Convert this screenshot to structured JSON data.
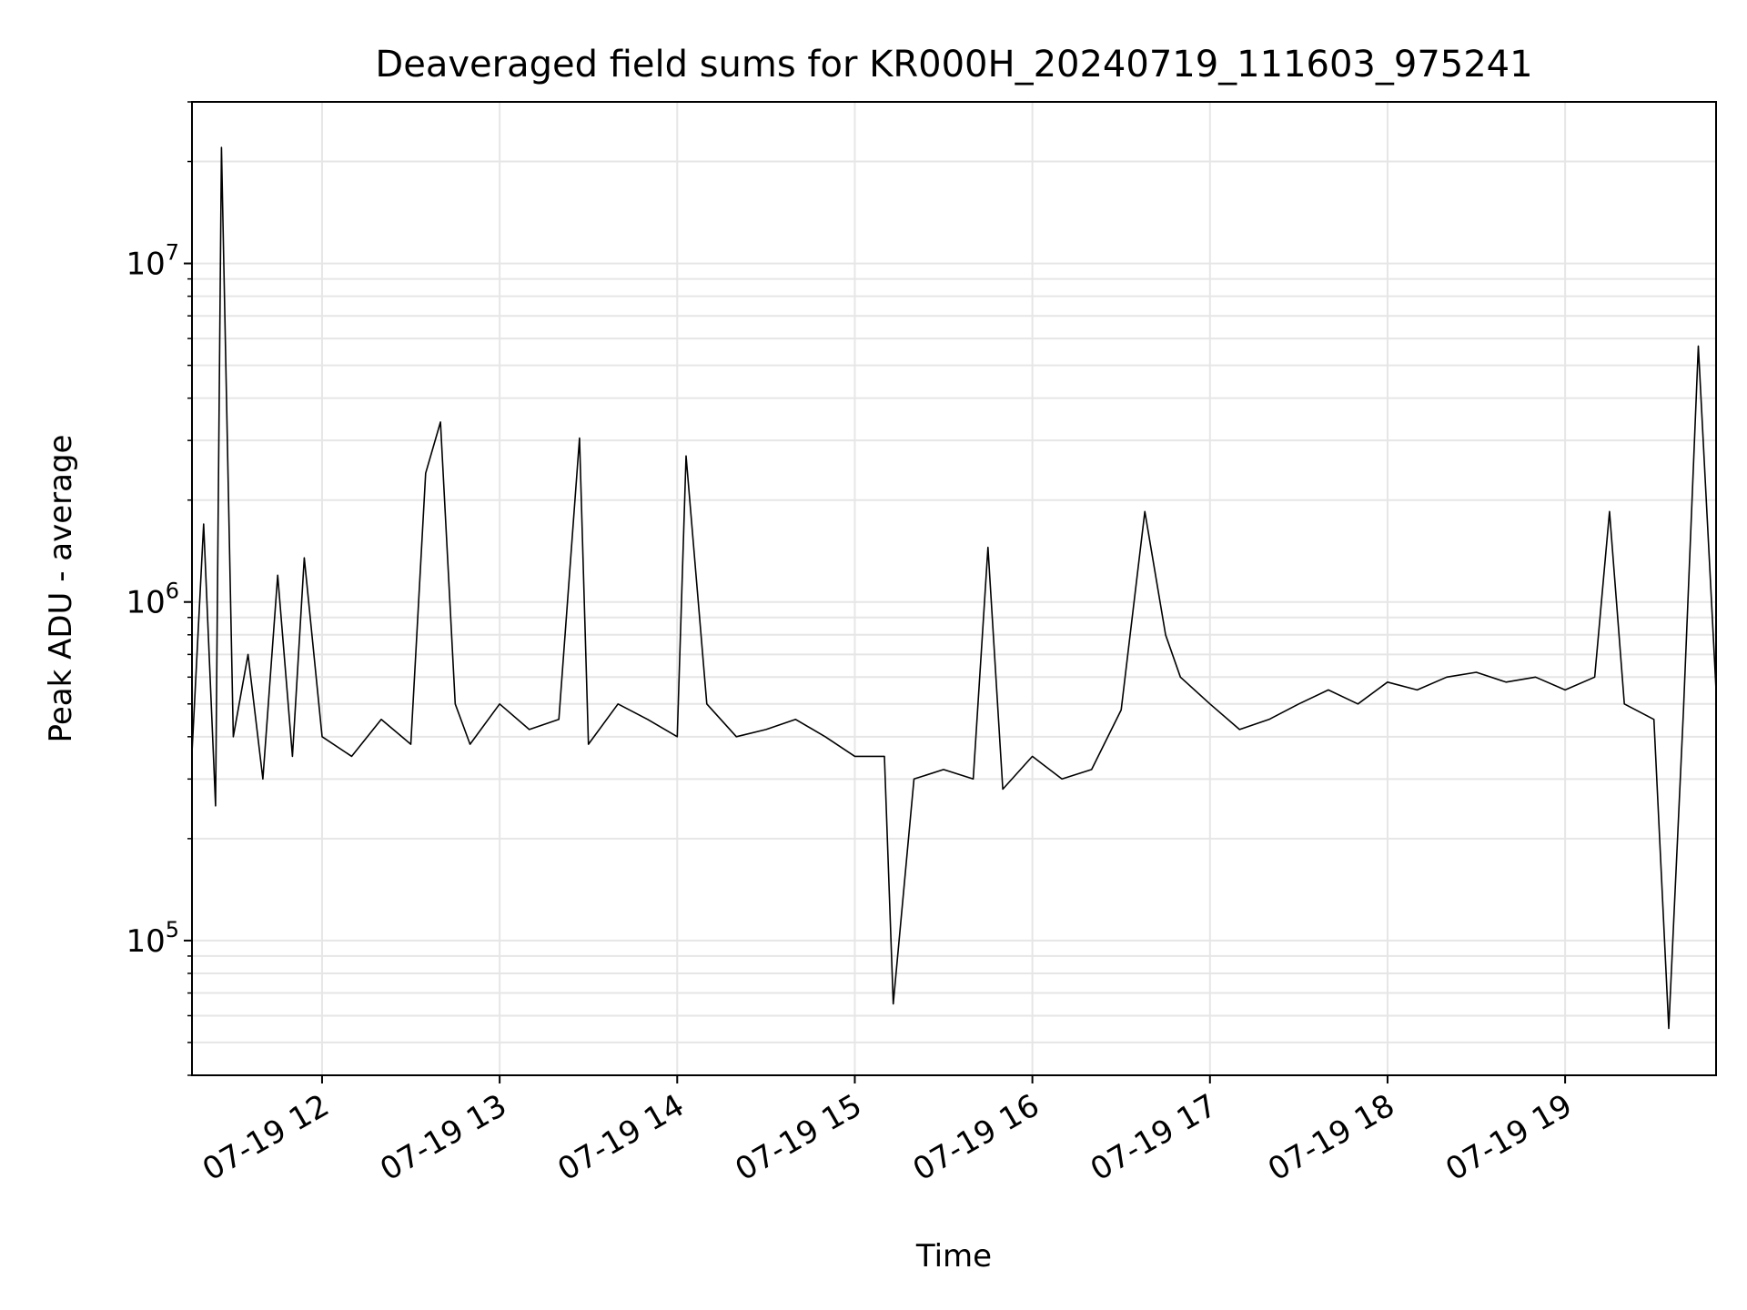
{
  "chart_data": {
    "type": "line",
    "title": "Deaveraged field sums for KR000H_20240719_111603_975241",
    "xlabel": "Time",
    "ylabel": "Peak ADU - average",
    "x_scale": "time",
    "y_scale": "log",
    "xlim": [
      "2024-07-19T11:16:03",
      "2024-07-19T19:51:00"
    ],
    "ylim": [
      40000,
      30000000
    ],
    "grid": true,
    "line_color": "#000000",
    "grid_color": "#e6e6e6",
    "x_ticks": [
      {
        "value": "2024-07-19T12:00",
        "label": "07-19 12"
      },
      {
        "value": "2024-07-19T13:00",
        "label": "07-19 13"
      },
      {
        "value": "2024-07-19T14:00",
        "label": "07-19 14"
      },
      {
        "value": "2024-07-19T15:00",
        "label": "07-19 15"
      },
      {
        "value": "2024-07-19T16:00",
        "label": "07-19 16"
      },
      {
        "value": "2024-07-19T17:00",
        "label": "07-19 17"
      },
      {
        "value": "2024-07-19T18:00",
        "label": "07-19 18"
      },
      {
        "value": "2024-07-19T19:00",
        "label": "07-19 19"
      }
    ],
    "y_ticks": [
      {
        "value": 100000,
        "base": "10",
        "exp": "5"
      },
      {
        "value": 1000000,
        "base": "10",
        "exp": "6"
      },
      {
        "value": 10000000,
        "base": "10",
        "exp": "7"
      }
    ],
    "series": [
      {
        "x": [
          "2024-07-19T11:16",
          "2024-07-19T11:20",
          "2024-07-19T11:24",
          "2024-07-19T11:26",
          "2024-07-19T11:30",
          "2024-07-19T11:35",
          "2024-07-19T11:40",
          "2024-07-19T11:45",
          "2024-07-19T11:50",
          "2024-07-19T11:54",
          "2024-07-19T12:00",
          "2024-07-19T12:10",
          "2024-07-19T12:20",
          "2024-07-19T12:30",
          "2024-07-19T12:35",
          "2024-07-19T12:40",
          "2024-07-19T12:45",
          "2024-07-19T12:50",
          "2024-07-19T13:00",
          "2024-07-19T13:10",
          "2024-07-19T13:20",
          "2024-07-19T13:27",
          "2024-07-19T13:30",
          "2024-07-19T13:40",
          "2024-07-19T13:50",
          "2024-07-19T14:00",
          "2024-07-19T14:03",
          "2024-07-19T14:10",
          "2024-07-19T14:20",
          "2024-07-19T14:30",
          "2024-07-19T14:40",
          "2024-07-19T14:50",
          "2024-07-19T15:00",
          "2024-07-19T15:10",
          "2024-07-19T15:13",
          "2024-07-19T15:20",
          "2024-07-19T15:30",
          "2024-07-19T15:40",
          "2024-07-19T15:45",
          "2024-07-19T15:50",
          "2024-07-19T16:00",
          "2024-07-19T16:10",
          "2024-07-19T16:20",
          "2024-07-19T16:30",
          "2024-07-19T16:38",
          "2024-07-19T16:45",
          "2024-07-19T16:50",
          "2024-07-19T17:00",
          "2024-07-19T17:10",
          "2024-07-19T17:20",
          "2024-07-19T17:30",
          "2024-07-19T17:40",
          "2024-07-19T17:50",
          "2024-07-19T18:00",
          "2024-07-19T18:10",
          "2024-07-19T18:20",
          "2024-07-19T18:30",
          "2024-07-19T18:40",
          "2024-07-19T18:50",
          "2024-07-19T19:00",
          "2024-07-19T19:10",
          "2024-07-19T19:15",
          "2024-07-19T19:20",
          "2024-07-19T19:30",
          "2024-07-19T19:35",
          "2024-07-19T19:40",
          "2024-07-19T19:45",
          "2024-07-19T19:51"
        ],
        "y": [
          350000,
          1700000,
          250000,
          22000000,
          400000,
          700000,
          300000,
          1200000,
          350000,
          1350000,
          400000,
          350000,
          450000,
          380000,
          2400000,
          3400000,
          500000,
          380000,
          500000,
          420000,
          450000,
          3050000,
          380000,
          500000,
          450000,
          400000,
          2700000,
          500000,
          400000,
          420000,
          450000,
          400000,
          350000,
          350000,
          65000,
          300000,
          320000,
          300000,
          1450000,
          280000,
          350000,
          300000,
          320000,
          480000,
          1850000,
          800000,
          600000,
          500000,
          420000,
          450000,
          500000,
          550000,
          500000,
          580000,
          550000,
          600000,
          620000,
          580000,
          600000,
          550000,
          600000,
          1850000,
          500000,
          450000,
          55000,
          480000,
          5700000,
          550000
        ]
      }
    ]
  }
}
